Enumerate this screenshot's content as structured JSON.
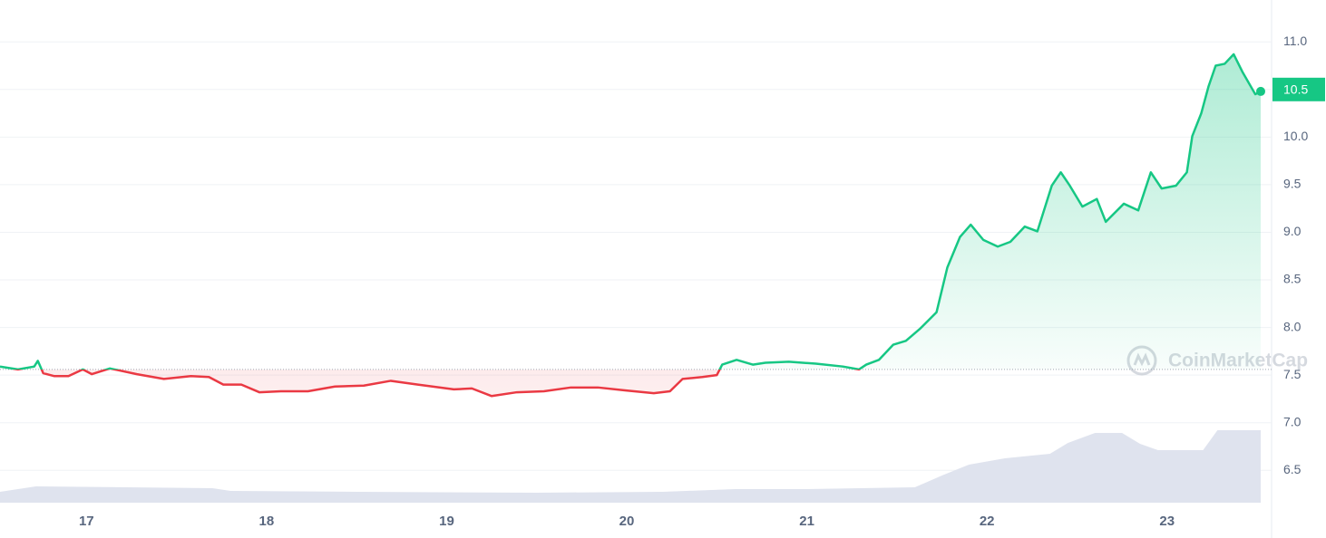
{
  "chart_data": {
    "type": "line",
    "x": [
      16.52,
      16.62,
      16.71,
      16.73,
      16.76,
      16.82,
      16.9,
      16.98,
      17.03,
      17.13,
      17.28,
      17.43,
      17.58,
      17.68,
      17.76,
      17.86,
      17.96,
      18.08,
      18.23,
      18.38,
      18.54,
      18.69,
      18.84,
      19.04,
      19.14,
      19.25,
      19.39,
      19.54,
      19.69,
      19.84,
      19.99,
      20.15,
      20.24,
      20.31,
      20.42,
      20.5,
      20.53,
      20.61,
      20.7,
      20.77,
      20.9,
      21.05,
      21.2,
      21.29,
      21.33,
      21.4,
      21.48,
      21.55,
      21.63,
      21.72,
      21.78,
      21.85,
      21.91,
      21.98,
      22.06,
      22.13,
      22.21,
      22.28,
      22.36,
      22.41,
      22.46,
      22.53,
      22.61,
      22.66,
      22.76,
      22.84,
      22.91,
      22.97,
      23.05,
      23.11,
      23.14,
      23.19,
      23.23,
      23.27,
      23.32,
      23.37,
      23.42,
      23.49,
      23.52
    ],
    "values": [
      7.59,
      7.56,
      7.59,
      7.65,
      7.52,
      7.49,
      7.49,
      7.56,
      7.51,
      7.57,
      7.51,
      7.46,
      7.49,
      7.48,
      7.4,
      7.4,
      7.32,
      7.33,
      7.33,
      7.38,
      7.39,
      7.44,
      7.4,
      7.35,
      7.36,
      7.28,
      7.32,
      7.33,
      7.37,
      7.37,
      7.34,
      7.31,
      7.33,
      7.46,
      7.48,
      7.5,
      7.61,
      7.66,
      7.61,
      7.63,
      7.64,
      7.62,
      7.59,
      7.56,
      7.61,
      7.66,
      7.82,
      7.86,
      7.99,
      8.16,
      8.63,
      8.95,
      9.08,
      8.92,
      8.85,
      8.9,
      9.06,
      9.01,
      9.49,
      9.63,
      9.49,
      9.27,
      9.35,
      9.11,
      9.3,
      9.23,
      9.63,
      9.46,
      9.49,
      9.63,
      10.01,
      10.25,
      10.53,
      10.75,
      10.77,
      10.87,
      10.68,
      10.45,
      10.48
    ],
    "baseline": 7.56,
    "up_color": "#16c784",
    "down_color": "#ea3943",
    "current_price": 10.5,
    "xlim": [
      16.52,
      23.52
    ],
    "xticks": [
      17,
      18,
      19,
      20,
      21,
      22,
      23
    ],
    "ylim": [
      6.16,
      11.44
    ],
    "yticks": [
      6.5,
      {
        "value": 7,
        "label": "7.0"
      },
      7.5,
      {
        "value": 8,
        "label": "8.0"
      },
      8.5,
      {
        "value": 9,
        "label": "9.0"
      },
      9.5,
      {
        "value": 10,
        "label": "10.0"
      },
      10.5,
      {
        "value": 11,
        "label": "11.0"
      }
    ],
    "grid": true,
    "volume": {
      "x": [
        16.52,
        16.72,
        17.7,
        17.8,
        18.5,
        19.5,
        20.2,
        20.6,
        21.0,
        21.6,
        21.75,
        21.9,
        22.1,
        22.35,
        22.45,
        22.6,
        22.75,
        22.85,
        22.95,
        23.2,
        23.28,
        23.52
      ],
      "values": [
        12,
        18,
        16,
        13,
        12,
        11,
        12,
        15,
        15,
        17,
        30,
        42,
        49,
        54,
        66,
        77,
        77,
        65,
        58,
        58,
        80,
        80
      ],
      "color": "#dfe3ee",
      "vlim": [
        0,
        100
      ]
    },
    "watermark": "CoinMarketCap"
  }
}
